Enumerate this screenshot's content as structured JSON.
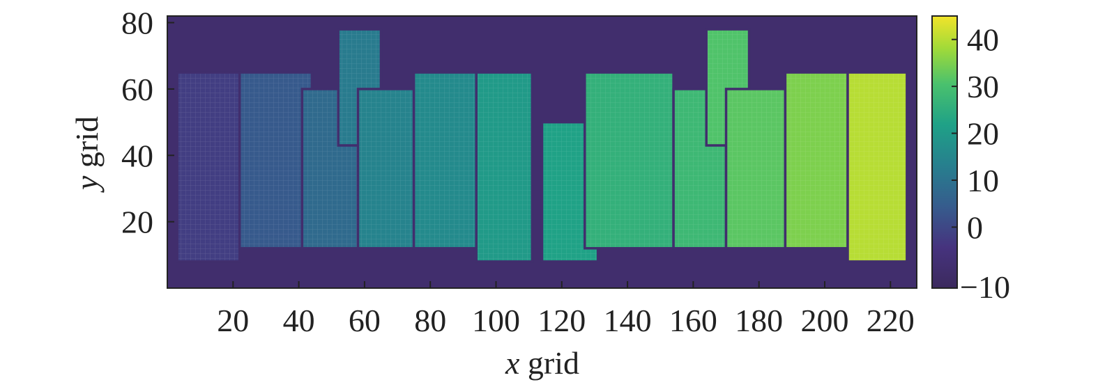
{
  "chart_data": {
    "type": "heatmap",
    "title": "",
    "xlabel_var": "x",
    "xlabel_text": " grid",
    "ylabel_var": "y",
    "ylabel_text": " grid",
    "xlim": [
      0,
      228
    ],
    "ylim": [
      0,
      82
    ],
    "x_ticks": [
      20,
      40,
      60,
      80,
      100,
      120,
      140,
      160,
      180,
      200,
      220
    ],
    "y_ticks": [
      20,
      40,
      60,
      80
    ],
    "colorbar": {
      "range": [
        -13,
        45
      ],
      "ticks": [
        40,
        30,
        20,
        10,
        0
      ],
      "bottom_label": "−10",
      "colormap": "viridis"
    },
    "background_value": -9,
    "regions": [
      {
        "name": "r1",
        "value": -2,
        "x": [
          3,
          22
        ],
        "y": [
          8,
          65
        ]
      },
      {
        "name": "r2",
        "value": 4,
        "x": [
          22,
          44
        ],
        "y": [
          12,
          65
        ]
      },
      {
        "name": "r3",
        "value": 8,
        "x": [
          41,
          58
        ],
        "y": [
          12,
          60
        ]
      },
      {
        "name": "r4",
        "value": 12,
        "x": [
          52,
          65
        ],
        "y": [
          43,
          78
        ]
      },
      {
        "name": "r5",
        "value": 14,
        "x": [
          58,
          75
        ],
        "y": [
          12,
          60
        ]
      },
      {
        "name": "r6",
        "value": 16,
        "x": [
          75,
          95
        ],
        "y": [
          12,
          65
        ]
      },
      {
        "name": "r7",
        "value": 20,
        "x": [
          94,
          111
        ],
        "y": [
          8,
          65
        ]
      },
      {
        "name": "r8",
        "value": 22,
        "x": [
          114,
          131
        ],
        "y": [
          8,
          50
        ]
      },
      {
        "name": "r9",
        "value": 26,
        "x": [
          127,
          154
        ],
        "y": [
          12,
          65
        ]
      },
      {
        "name": "r10",
        "value": 28,
        "x": [
          154,
          170
        ],
        "y": [
          12,
          60
        ]
      },
      {
        "name": "r11",
        "value": 31,
        "x": [
          164,
          177
        ],
        "y": [
          43,
          78
        ]
      },
      {
        "name": "r12",
        "value": 32,
        "x": [
          170,
          188
        ],
        "y": [
          12,
          60
        ]
      },
      {
        "name": "r13",
        "value": 35,
        "x": [
          188,
          207
        ],
        "y": [
          12,
          65
        ]
      },
      {
        "name": "r14",
        "value": 40,
        "x": [
          207,
          225
        ],
        "y": [
          8,
          65
        ]
      }
    ]
  }
}
